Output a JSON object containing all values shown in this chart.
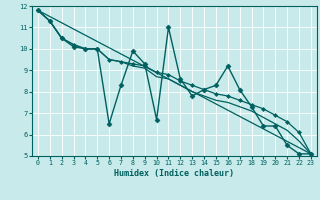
{
  "xlabel": "Humidex (Indice chaleur)",
  "ylabel": "",
  "xlim": [
    -0.5,
    23.5
  ],
  "ylim": [
    5,
    12
  ],
  "xticks": [
    0,
    1,
    2,
    3,
    4,
    5,
    6,
    7,
    8,
    9,
    10,
    11,
    12,
    13,
    14,
    15,
    16,
    17,
    18,
    19,
    20,
    21,
    22,
    23
  ],
  "yticks": [
    5,
    6,
    7,
    8,
    9,
    10,
    11,
    12
  ],
  "bg_color": "#c8eaea",
  "line_color": "#006060",
  "grid_color": "#ffffff",
  "series": [
    {
      "x": [
        0,
        1,
        2,
        3,
        4,
        5,
        6,
        7,
        8,
        9,
        10,
        11,
        12,
        13,
        14,
        15,
        16,
        17,
        18,
        19,
        20,
        21,
        22,
        23
      ],
      "y": [
        11.8,
        11.3,
        10.5,
        10.1,
        10.0,
        10.0,
        6.5,
        8.3,
        9.9,
        9.3,
        6.7,
        11.0,
        8.6,
        7.8,
        8.1,
        8.3,
        9.2,
        8.1,
        7.3,
        6.4,
        6.4,
        5.5,
        5.1,
        5.1
      ],
      "marker": "D",
      "markersize": 2.5,
      "linewidth": 1.0
    },
    {
      "x": [
        0,
        1,
        2,
        3,
        4,
        5,
        6,
        7,
        8,
        9,
        10,
        11,
        12,
        13,
        14,
        15,
        16,
        17,
        18,
        19,
        20,
        21,
        22,
        23
      ],
      "y": [
        11.8,
        11.3,
        10.5,
        10.2,
        10.0,
        10.0,
        9.5,
        9.4,
        9.3,
        9.2,
        8.9,
        8.8,
        8.5,
        8.3,
        8.1,
        7.9,
        7.8,
        7.6,
        7.4,
        7.2,
        6.9,
        6.6,
        6.1,
        5.1
      ],
      "marker": "D",
      "markersize": 2.0,
      "linewidth": 0.9
    },
    {
      "x": [
        0,
        1,
        2,
        3,
        4,
        5,
        6,
        7,
        8,
        9,
        10,
        11,
        12,
        13,
        14,
        15,
        16,
        17,
        18,
        19,
        20,
        21,
        22,
        23
      ],
      "y": [
        11.8,
        11.3,
        10.5,
        10.2,
        10.0,
        10.0,
        9.5,
        9.4,
        9.2,
        9.1,
        8.7,
        8.6,
        8.3,
        8.0,
        7.8,
        7.6,
        7.5,
        7.3,
        7.1,
        6.8,
        6.5,
        6.2,
        5.7,
        5.1
      ],
      "marker": null,
      "markersize": 0,
      "linewidth": 0.9
    },
    {
      "x": [
        0,
        23
      ],
      "y": [
        11.8,
        5.1
      ],
      "marker": null,
      "markersize": 0,
      "linewidth": 0.9
    }
  ]
}
